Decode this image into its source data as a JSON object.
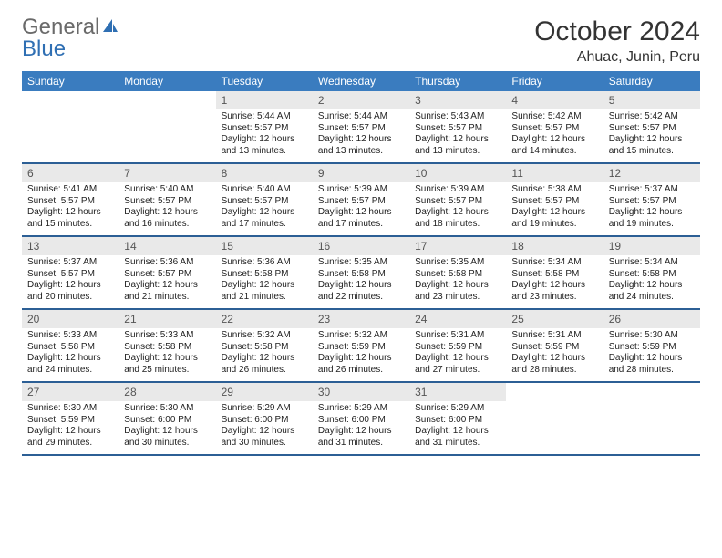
{
  "logo": {
    "word1": "General",
    "word2": "Blue"
  },
  "title": "October 2024",
  "location": "Ahuac, Junin, Peru",
  "colors": {
    "header_bg": "#3a7cbf",
    "header_text": "#ffffff",
    "daynum_bg": "#e9e9e9",
    "sep": "#2c5f95",
    "logo_gray": "#6a6a6a",
    "logo_blue": "#2f6fb3"
  },
  "days_of_week": [
    "Sunday",
    "Monday",
    "Tuesday",
    "Wednesday",
    "Thursday",
    "Friday",
    "Saturday"
  ],
  "weeks": [
    [
      null,
      null,
      {
        "n": "1",
        "sr": "5:44 AM",
        "ss": "5:57 PM",
        "dl": "12 hours and 13 minutes."
      },
      {
        "n": "2",
        "sr": "5:44 AM",
        "ss": "5:57 PM",
        "dl": "12 hours and 13 minutes."
      },
      {
        "n": "3",
        "sr": "5:43 AM",
        "ss": "5:57 PM",
        "dl": "12 hours and 13 minutes."
      },
      {
        "n": "4",
        "sr": "5:42 AM",
        "ss": "5:57 PM",
        "dl": "12 hours and 14 minutes."
      },
      {
        "n": "5",
        "sr": "5:42 AM",
        "ss": "5:57 PM",
        "dl": "12 hours and 15 minutes."
      }
    ],
    [
      {
        "n": "6",
        "sr": "5:41 AM",
        "ss": "5:57 PM",
        "dl": "12 hours and 15 minutes."
      },
      {
        "n": "7",
        "sr": "5:40 AM",
        "ss": "5:57 PM",
        "dl": "12 hours and 16 minutes."
      },
      {
        "n": "8",
        "sr": "5:40 AM",
        "ss": "5:57 PM",
        "dl": "12 hours and 17 minutes."
      },
      {
        "n": "9",
        "sr": "5:39 AM",
        "ss": "5:57 PM",
        "dl": "12 hours and 17 minutes."
      },
      {
        "n": "10",
        "sr": "5:39 AM",
        "ss": "5:57 PM",
        "dl": "12 hours and 18 minutes."
      },
      {
        "n": "11",
        "sr": "5:38 AM",
        "ss": "5:57 PM",
        "dl": "12 hours and 19 minutes."
      },
      {
        "n": "12",
        "sr": "5:37 AM",
        "ss": "5:57 PM",
        "dl": "12 hours and 19 minutes."
      }
    ],
    [
      {
        "n": "13",
        "sr": "5:37 AM",
        "ss": "5:57 PM",
        "dl": "12 hours and 20 minutes."
      },
      {
        "n": "14",
        "sr": "5:36 AM",
        "ss": "5:57 PM",
        "dl": "12 hours and 21 minutes."
      },
      {
        "n": "15",
        "sr": "5:36 AM",
        "ss": "5:58 PM",
        "dl": "12 hours and 21 minutes."
      },
      {
        "n": "16",
        "sr": "5:35 AM",
        "ss": "5:58 PM",
        "dl": "12 hours and 22 minutes."
      },
      {
        "n": "17",
        "sr": "5:35 AM",
        "ss": "5:58 PM",
        "dl": "12 hours and 23 minutes."
      },
      {
        "n": "18",
        "sr": "5:34 AM",
        "ss": "5:58 PM",
        "dl": "12 hours and 23 minutes."
      },
      {
        "n": "19",
        "sr": "5:34 AM",
        "ss": "5:58 PM",
        "dl": "12 hours and 24 minutes."
      }
    ],
    [
      {
        "n": "20",
        "sr": "5:33 AM",
        "ss": "5:58 PM",
        "dl": "12 hours and 24 minutes."
      },
      {
        "n": "21",
        "sr": "5:33 AM",
        "ss": "5:58 PM",
        "dl": "12 hours and 25 minutes."
      },
      {
        "n": "22",
        "sr": "5:32 AM",
        "ss": "5:58 PM",
        "dl": "12 hours and 26 minutes."
      },
      {
        "n": "23",
        "sr": "5:32 AM",
        "ss": "5:59 PM",
        "dl": "12 hours and 26 minutes."
      },
      {
        "n": "24",
        "sr": "5:31 AM",
        "ss": "5:59 PM",
        "dl": "12 hours and 27 minutes."
      },
      {
        "n": "25",
        "sr": "5:31 AM",
        "ss": "5:59 PM",
        "dl": "12 hours and 28 minutes."
      },
      {
        "n": "26",
        "sr": "5:30 AM",
        "ss": "5:59 PM",
        "dl": "12 hours and 28 minutes."
      }
    ],
    [
      {
        "n": "27",
        "sr": "5:30 AM",
        "ss": "5:59 PM",
        "dl": "12 hours and 29 minutes."
      },
      {
        "n": "28",
        "sr": "5:30 AM",
        "ss": "6:00 PM",
        "dl": "12 hours and 30 minutes."
      },
      {
        "n": "29",
        "sr": "5:29 AM",
        "ss": "6:00 PM",
        "dl": "12 hours and 30 minutes."
      },
      {
        "n": "30",
        "sr": "5:29 AM",
        "ss": "6:00 PM",
        "dl": "12 hours and 31 minutes."
      },
      {
        "n": "31",
        "sr": "5:29 AM",
        "ss": "6:00 PM",
        "dl": "12 hours and 31 minutes."
      },
      null,
      null
    ]
  ],
  "labels": {
    "sunrise": "Sunrise:",
    "sunset": "Sunset:",
    "daylight": "Daylight:"
  }
}
